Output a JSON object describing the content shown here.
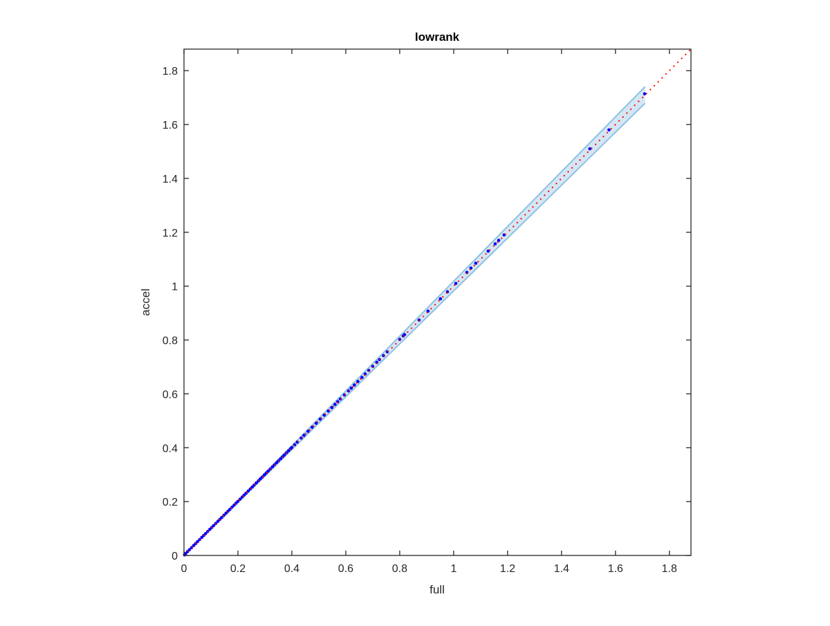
{
  "chart_data": {
    "type": "scatter",
    "title": "lowrank",
    "xlabel": "full",
    "ylabel": "accel",
    "xlim": [
      0,
      1.88
    ],
    "ylim": [
      0,
      1.88
    ],
    "xticks": [
      0,
      0.2,
      0.4,
      0.6,
      0.8,
      1,
      1.2,
      1.4,
      1.6,
      1.8
    ],
    "yticks": [
      0,
      0.2,
      0.4,
      0.6,
      0.8,
      1,
      1.2,
      1.4,
      1.6,
      1.8
    ],
    "xtick_labels": [
      "0",
      "0.2",
      "0.4",
      "0.6",
      "0.8",
      "1",
      "1.2",
      "1.4",
      "1.6",
      "1.8"
    ],
    "ytick_labels": [
      "0",
      "0.2",
      "0.4",
      "0.6",
      "0.8",
      "1",
      "1.2",
      "1.4",
      "1.6",
      "1.8"
    ],
    "grid": false,
    "reference_line": {
      "style": "dotted",
      "color": "#ff0000",
      "from": [
        0,
        0
      ],
      "to": [
        1.88,
        1.88
      ]
    },
    "band": {
      "color_fill": "#d4e6f4",
      "color_edge": "#8ec1e2",
      "x_range": [
        0,
        1.71
      ],
      "relative_halfwidth": 0.018
    },
    "points_color": "#0000ff",
    "x": [
      1.708,
      1.576,
      1.505,
      1.187,
      1.167,
      1.154,
      1.128,
      1.082,
      1.064,
      1.049,
      1.008,
      0.977,
      0.951,
      0.905,
      0.872,
      0.818,
      0.813,
      0.8,
      0.754,
      0.74,
      0.725,
      0.715,
      0.7,
      0.685,
      0.672,
      0.66,
      0.645,
      0.632,
      0.62,
      0.61,
      0.595,
      0.58,
      0.57,
      0.56,
      0.548,
      0.535,
      0.52,
      0.505,
      0.49,
      0.475,
      0.46,
      0.445,
      0.435,
      0.42,
      0.41,
      0.4,
      0.395,
      0.388,
      0.38,
      0.372,
      0.365,
      0.358,
      0.35,
      0.343,
      0.335,
      0.328,
      0.32,
      0.312,
      0.305,
      0.298,
      0.29,
      0.283,
      0.276,
      0.268,
      0.26,
      0.253,
      0.246,
      0.238,
      0.23,
      0.223,
      0.216,
      0.208,
      0.2,
      0.193,
      0.186,
      0.178,
      0.17,
      0.163,
      0.156,
      0.148,
      0.14,
      0.133,
      0.126,
      0.118,
      0.11,
      0.103,
      0.096,
      0.088,
      0.08,
      0.073,
      0.066,
      0.058,
      0.05,
      0.043,
      0.036,
      0.028,
      0.02,
      0.013,
      0.006,
      0.002
    ],
    "y": [
      1.714,
      1.58,
      1.51,
      1.19,
      1.17,
      1.157,
      1.13,
      1.085,
      1.067,
      1.051,
      1.01,
      0.979,
      0.953,
      0.907,
      0.874,
      0.82,
      0.815,
      0.802,
      0.756,
      0.742,
      0.727,
      0.717,
      0.702,
      0.687,
      0.674,
      0.661,
      0.646,
      0.633,
      0.621,
      0.611,
      0.596,
      0.581,
      0.571,
      0.561,
      0.549,
      0.536,
      0.521,
      0.506,
      0.491,
      0.476,
      0.461,
      0.446,
      0.436,
      0.421,
      0.411,
      0.401,
      0.396,
      0.389,
      0.381,
      0.373,
      0.366,
      0.359,
      0.351,
      0.344,
      0.336,
      0.329,
      0.321,
      0.313,
      0.306,
      0.299,
      0.291,
      0.284,
      0.277,
      0.269,
      0.261,
      0.254,
      0.247,
      0.239,
      0.231,
      0.224,
      0.217,
      0.209,
      0.201,
      0.194,
      0.187,
      0.179,
      0.171,
      0.164,
      0.157,
      0.149,
      0.141,
      0.134,
      0.127,
      0.119,
      0.111,
      0.104,
      0.097,
      0.089,
      0.081,
      0.074,
      0.067,
      0.059,
      0.051,
      0.044,
      0.037,
      0.029,
      0.021,
      0.014,
      0.007,
      0.002
    ]
  }
}
